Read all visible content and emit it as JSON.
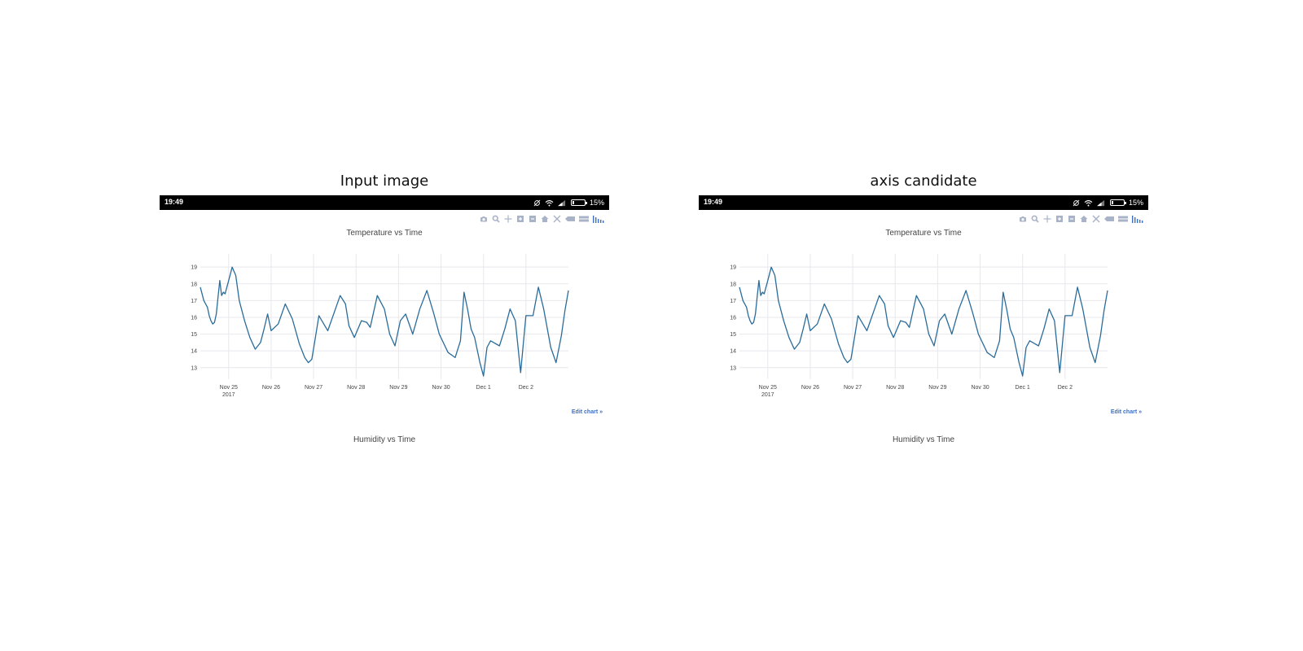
{
  "panels": [
    {
      "caption": "Input image"
    },
    {
      "caption": "axis candidate"
    }
  ],
  "statusbar": {
    "time": "19:49",
    "battery": "15%",
    "battery_level": 0.15,
    "icons": [
      "alarm-off-icon",
      "wifi-icon",
      "signal-icon",
      "battery-icon"
    ]
  },
  "modebar_icons": [
    "camera-icon",
    "zoom-icon",
    "pan-icon",
    "zoom-in-icon",
    "zoom-out-icon",
    "home-icon",
    "autoscale-icon",
    "spike-lines-icon",
    "compare-hover-icon",
    "plotly-logo-icon"
  ],
  "edit_chart": "Edit chart »",
  "second_chart_title": "Humidity vs Time",
  "colors": {
    "line": "#2a6c9a",
    "grid": "#e8e8ee",
    "modebar": "#a9b3c7",
    "link": "#3b6fc4"
  },
  "chart_data": {
    "type": "line",
    "title": "Temperature vs Time",
    "xlabel": "",
    "ylabel": "",
    "xlim": [
      "2017-11-24 08:00",
      "2017-12-03 00:00"
    ],
    "ylim": [
      12.6,
      19.3
    ],
    "y_ticks": [
      "13",
      "14",
      "15",
      "16",
      "17",
      "18",
      "19"
    ],
    "x_ticks": [
      {
        "label": "Nov 25",
        "sub": "2017",
        "date": "2017-11-25"
      },
      {
        "label": "Nov 26",
        "sub": "",
        "date": "2017-11-26"
      },
      {
        "label": "Nov 27",
        "sub": "",
        "date": "2017-11-27"
      },
      {
        "label": "Nov 28",
        "sub": "",
        "date": "2017-11-28"
      },
      {
        "label": "Nov 29",
        "sub": "",
        "date": "2017-11-29"
      },
      {
        "label": "Nov 30",
        "sub": "",
        "date": "2017-11-30"
      },
      {
        "label": "Dec 1",
        "sub": "",
        "date": "2017-12-01"
      },
      {
        "label": "Dec 2",
        "sub": "",
        "date": "2017-12-02"
      }
    ],
    "grid": true,
    "series": [
      {
        "x": [
          "2017-11-24 08:00",
          "2017-11-24 10:00",
          "2017-11-24 12:00",
          "2017-11-24 13:00",
          "2017-11-24 14:00",
          "2017-11-24 15:00",
          "2017-11-24 16:00",
          "2017-11-24 17:00",
          "2017-11-24 18:00",
          "2017-11-24 19:00",
          "2017-11-24 20:00",
          "2017-11-24 21:00",
          "2017-11-24 22:00",
          "2017-11-25 00:00",
          "2017-11-25 02:00",
          "2017-11-25 04:00",
          "2017-11-25 06:00",
          "2017-11-25 09:00",
          "2017-11-25 12:00",
          "2017-11-25 15:00",
          "2017-11-25 18:00",
          "2017-11-25 20:00",
          "2017-11-25 22:00",
          "2017-11-26 00:00",
          "2017-11-26 04:00",
          "2017-11-26 08:00",
          "2017-11-26 12:00",
          "2017-11-26 16:00",
          "2017-11-26 19:00",
          "2017-11-26 21:00",
          "2017-11-26 23:00",
          "2017-11-27 01:00",
          "2017-11-27 03:00",
          "2017-11-27 08:00",
          "2017-11-27 12:00",
          "2017-11-27 15:00",
          "2017-11-27 18:00",
          "2017-11-27 20:00",
          "2017-11-27 23:00",
          "2017-11-28 03:00",
          "2017-11-28 06:00",
          "2017-11-28 08:00",
          "2017-11-28 12:00",
          "2017-11-28 16:00",
          "2017-11-28 19:00",
          "2017-11-28 22:00",
          "2017-11-29 01:00",
          "2017-11-29 04:00",
          "2017-11-29 08:00",
          "2017-11-29 12:00",
          "2017-11-29 16:00",
          "2017-11-29 20:00",
          "2017-11-29 23:00",
          "2017-11-30 04:00",
          "2017-11-30 08:00",
          "2017-11-30 11:00",
          "2017-11-30 13:00",
          "2017-11-30 15:00",
          "2017-11-30 17:00",
          "2017-11-30 19:00",
          "2017-11-30 22:00",
          "2017-12-01 00:00",
          "2017-12-01 02:00",
          "2017-12-01 04:00",
          "2017-12-01 09:00",
          "2017-12-01 12:00",
          "2017-12-01 15:00",
          "2017-12-01 18:00",
          "2017-12-01 21:00",
          "2017-12-02 00:00",
          "2017-12-02 04:00",
          "2017-12-02 07:00",
          "2017-12-02 10:00",
          "2017-12-02 14:00",
          "2017-12-02 17:00",
          "2017-12-02 20:00",
          "2017-12-02 22:00",
          "2017-12-03 00:00"
        ],
        "y": [
          17.8,
          17.0,
          16.6,
          16.1,
          15.8,
          15.6,
          15.7,
          16.2,
          17.2,
          18.2,
          17.3,
          17.5,
          17.4,
          18.2,
          19.0,
          18.5,
          17.0,
          15.8,
          14.8,
          14.1,
          14.5,
          15.3,
          16.2,
          15.2,
          15.6,
          16.8,
          15.9,
          14.4,
          13.6,
          13.3,
          13.5,
          14.8,
          16.1,
          15.2,
          16.4,
          17.3,
          16.8,
          15.5,
          14.8,
          15.8,
          15.7,
          15.4,
          17.3,
          16.5,
          15.0,
          14.3,
          15.8,
          16.2,
          15.0,
          16.5,
          17.6,
          16.2,
          15.0,
          13.9,
          13.6,
          14.6,
          17.5,
          16.5,
          15.3,
          14.8,
          13.3,
          12.5,
          14.2,
          14.6,
          14.3,
          15.3,
          16.5,
          15.8,
          12.7,
          16.1,
          16.1,
          17.8,
          16.5,
          14.2,
          13.3,
          14.9,
          16.4,
          17.6
        ]
      }
    ]
  }
}
